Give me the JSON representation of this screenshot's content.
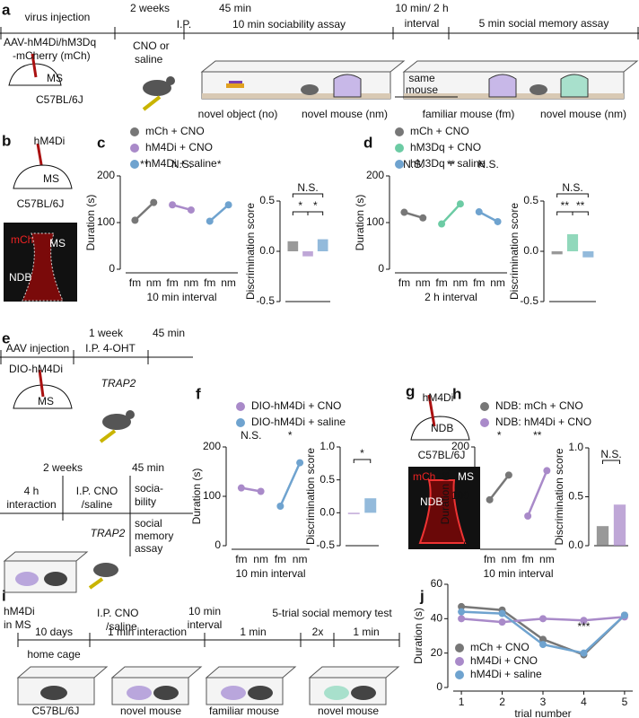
{
  "panel_labels": [
    "a",
    "b",
    "c",
    "d",
    "e",
    "f",
    "g",
    "h",
    "i",
    "j"
  ],
  "a": {
    "steps": [
      "virus injection",
      "2 weeks",
      "I.P.",
      "45 min",
      "10 min sociability assay",
      "10 min/ 2 h",
      "interval",
      "5 min social memory assay"
    ],
    "virus": [
      "AAV-hM4Di/hM3Dq",
      "-mCherry (mCh)"
    ],
    "region": "MS",
    "strain": "C57BL/6J",
    "drug": [
      "CNO or",
      "saline"
    ],
    "phases": [
      "novel object (no)",
      "novel mouse (nm)",
      "familiar mouse (fm)",
      "novel mouse (nm)"
    ],
    "same_mouse": [
      "same",
      "mouse"
    ]
  },
  "b": {
    "virus": "hM4Di",
    "region": "MS",
    "strain": "C57BL/6J",
    "image_labels": [
      "mCh",
      "MS",
      "NDB"
    ]
  },
  "e": {
    "steps": [
      "AAV injection",
      "1 week",
      "I.P. 4-OHT",
      "45 min"
    ],
    "virus": "DIO-hM4Di",
    "region": "MS",
    "line": "TRAP2",
    "steps2": [
      "2 weeks",
      "45 min",
      "4 h",
      "interaction",
      "I.P. CNO",
      "/saline",
      "socia-",
      "bility",
      "social",
      "memory",
      "assay"
    ],
    "line2": "TRAP2"
  },
  "g": {
    "virus": "hM4Di",
    "region": "NDB",
    "strain": "C57BL/6J",
    "image_labels": [
      "mCh",
      "MS",
      "NDB"
    ]
  },
  "i": {
    "top": [
      "hM4Di",
      "in MS",
      "I.P. CNO",
      "/saline",
      "10 min",
      "interval",
      "5-trial social memory test"
    ],
    "segments": [
      "10 days",
      "1 min interaction",
      "1 min",
      "2x",
      "1 min"
    ],
    "home": "home cage",
    "bottom": [
      "C57BL/6J",
      "novel mouse",
      "familiar mouse",
      "novel mouse"
    ]
  },
  "chart_data": [
    {
      "type": "line",
      "ylabel": "Duration (s)",
      "xlabel": "10 min interval",
      "ylim": [
        0,
        200
      ],
      "yticks": [
        0,
        100,
        200
      ],
      "categories": [
        "fm",
        "nm",
        "fm",
        "nm",
        "fm",
        "nm"
      ],
      "annotations": [
        "**",
        "N.S.",
        "*"
      ],
      "series": [
        {
          "name": "mCh + CNO",
          "color": "#777777",
          "values": [
            105,
            143,
            null,
            null,
            null,
            null
          ]
        },
        {
          "name": "hM4Di + CNO",
          "color": "#a98ac9",
          "values": [
            null,
            null,
            138,
            127,
            null,
            null
          ]
        },
        {
          "name": "hM4Di + saline",
          "color": "#6fa3cf",
          "values": [
            null,
            null,
            null,
            null,
            103,
            138
          ]
        }
      ]
    },
    {
      "type": "bar",
      "ylabel": "Discrimination score",
      "ylim": [
        -0.5,
        0.5
      ],
      "yticks": [
        -0.5,
        {
          "value": 0,
          "label": "0.0"
        },
        0.5
      ],
      "categories": [
        null,
        null,
        null
      ],
      "values": [
        0.1,
        -0.05,
        0.12
      ],
      "colors": [
        "#777777",
        "#a98ac9",
        "#6fa3cf"
      ],
      "annotations": [
        "N.S.",
        "*",
        "*"
      ]
    },
    {
      "type": "line",
      "ylabel": "Duration (s)",
      "xlabel": "2 h interval",
      "ylim": [
        0,
        200
      ],
      "yticks": [
        0,
        100,
        200
      ],
      "categories": [
        "fm",
        "nm",
        "fm",
        "nm",
        "fm",
        "nm"
      ],
      "annotations": [
        "N.S.",
        "**",
        "N.S."
      ],
      "series": [
        {
          "name": "mCh + CNO",
          "color": "#777777",
          "values": [
            122,
            110,
            null,
            null,
            null,
            null
          ]
        },
        {
          "name": "hM3Dq + CNO",
          "color": "#6ccba4",
          "values": [
            null,
            null,
            97,
            140,
            null,
            null
          ]
        },
        {
          "name": "hM3Dq + saline",
          "color": "#6fa3cf",
          "values": [
            null,
            null,
            null,
            null,
            123,
            102
          ]
        }
      ]
    },
    {
      "type": "bar",
      "ylabel": "Discrimination score",
      "ylim": [
        -0.5,
        0.5
      ],
      "yticks": [
        -0.5,
        {
          "value": 0,
          "label": "0.0"
        },
        0.5
      ],
      "categories": [
        null,
        null,
        null
      ],
      "values": [
        -0.03,
        0.17,
        -0.06
      ],
      "colors": [
        "#777777",
        "#6ccba4",
        "#6fa3cf"
      ],
      "annotations": [
        "N.S.",
        "**",
        "**"
      ]
    },
    {
      "type": "line",
      "ylabel": "Duration (s)",
      "xlabel": "10 min interval",
      "ylim": [
        0,
        200
      ],
      "yticks": [
        0,
        100,
        200
      ],
      "categories": [
        "fm",
        "nm",
        "fm",
        "nm"
      ],
      "annotations": [
        "N.S.",
        "*"
      ],
      "series": [
        {
          "name": "DIO-hM4Di + CNO",
          "color": "#a98ac9",
          "values": [
            117,
            110,
            null,
            null
          ]
        },
        {
          "name": "DIO-hM4Di + saline",
          "color": "#6fa3cf",
          "values": [
            null,
            null,
            80,
            168
          ]
        }
      ]
    },
    {
      "type": "bar",
      "ylabel": "Discrimination score",
      "ylim": [
        -0.5,
        1.0
      ],
      "yticks": [
        -0.5,
        {
          "value": 0,
          "label": "0.0"
        },
        0.5,
        {
          "value": 1,
          "label": "1.0"
        }
      ],
      "categories": [
        null,
        null
      ],
      "values": [
        -0.02,
        0.22
      ],
      "colors": [
        "#a98ac9",
        "#6fa3cf"
      ],
      "annotations": [
        "*"
      ]
    },
    {
      "type": "line",
      "ylabel": "Duration (s)",
      "xlabel": "10 min interval",
      "ylim": [
        0,
        200
      ],
      "yticks": [
        0,
        100,
        200
      ],
      "categories": [
        "fm",
        "nm",
        "fm",
        "nm"
      ],
      "annotations": [
        "*",
        "**"
      ],
      "series": [
        {
          "name": "NDB: mCh + CNO",
          "color": "#777777",
          "values": [
            93,
            143,
            null,
            null
          ]
        },
        {
          "name": "NDB: hM4Di + CNO",
          "color": "#a98ac9",
          "values": [
            null,
            null,
            60,
            152
          ]
        }
      ]
    },
    {
      "type": "bar",
      "ylabel": "Discrimination score",
      "ylim": [
        0,
        1.0
      ],
      "yticks": [
        {
          "value": 0,
          "label": "0.0"
        },
        0.5,
        {
          "value": 1,
          "label": "1.0"
        }
      ],
      "categories": [
        null,
        null
      ],
      "values": [
        0.2,
        0.42
      ],
      "colors": [
        "#777777",
        "#a98ac9"
      ],
      "annotations": [
        "N.S."
      ]
    },
    {
      "type": "line",
      "ylabel": "Duration (s)",
      "xlabel": "trial number",
      "ylim": [
        0,
        60
      ],
      "yticks": [
        0,
        20,
        40,
        60
      ],
      "x": [
        1,
        2,
        3,
        4,
        5
      ],
      "xlim": [
        0.8,
        5.2
      ],
      "xticks": [
        1,
        2,
        3,
        4,
        5
      ],
      "annotations": [
        "***"
      ],
      "series": [
        {
          "name": "mCh + CNO",
          "color": "#777777",
          "values": [
            47,
            45,
            28,
            19,
            42
          ]
        },
        {
          "name": "hM4Di + CNO",
          "color": "#a98ac9",
          "values": [
            40,
            38,
            40,
            39,
            41
          ]
        },
        {
          "name": "hM4Di + saline",
          "color": "#6fa3cf",
          "values": [
            44,
            43,
            25,
            20,
            42
          ]
        }
      ]
    }
  ]
}
